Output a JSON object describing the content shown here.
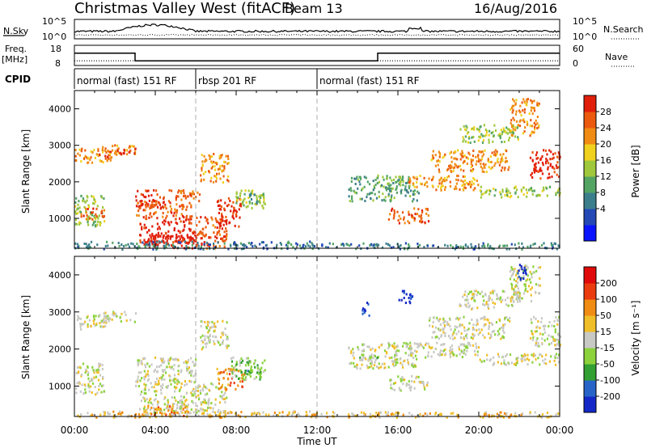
{
  "header": {
    "title": "Christmas Valley West (fitACF)",
    "beam": "Beam 13",
    "date": "16/Aug/2016"
  },
  "top_panels": {
    "nsky_label": "N.Sky",
    "nsky_ticks": [
      "10^5",
      "10^0"
    ],
    "nsearch_label": "N.Search",
    "nsearch_ticks": [
      "10^5",
      "10^0"
    ],
    "freq_label": "Freq.",
    "freq_unit": "[MHz]",
    "freq_ticks": [
      "18",
      "8"
    ],
    "nave_label": "Nave",
    "nave_ticks": [
      "60",
      "0"
    ],
    "cpid_label": "CPID",
    "cpid_segments": [
      {
        "label": "normal (fast) 151 RF",
        "start": 0,
        "end": 6
      },
      {
        "label": "rbsp 201 RF",
        "start": 6,
        "end": 12
      },
      {
        "label": "normal (fast) 151 RF",
        "start": 12,
        "end": 24
      }
    ],
    "freq_steps": [
      {
        "t0": 0,
        "t1": 3,
        "f": 15
      },
      {
        "t0": 3,
        "t1": 15,
        "f": 10
      },
      {
        "t0": 15,
        "t1": 24,
        "f": 15
      }
    ],
    "nave_level": 12
  },
  "x_axis": {
    "label": "Time UT",
    "ticks": [
      "00:00",
      "04:00",
      "08:00",
      "12:00",
      "16:00",
      "20:00",
      "00:00"
    ],
    "range": [
      0,
      24
    ]
  },
  "power_panel": {
    "ylabel": "Slant Range [km]",
    "yticks": [
      "4000",
      "3000",
      "2000",
      "1000"
    ],
    "colorbar_label": "Power [dB]",
    "colorbar_ticks": [
      "28",
      "24",
      "20",
      "16",
      "12",
      "8",
      "4"
    ],
    "colors": [
      "#0a14ff",
      "#2448b4",
      "#3c7f8c",
      "#54a464",
      "#a0c83c",
      "#f0d21e",
      "#f08c14",
      "#eb5a0f",
      "#e11e0a"
    ]
  },
  "velocity_panel": {
    "ylabel": "Slant Range [km]",
    "yticks": [
      "4000",
      "3000",
      "2000",
      "1000"
    ],
    "colorbar_label": "Velocity [m s⁻¹]",
    "colorbar_ticks": [
      "200",
      "100",
      "50",
      "15",
      "-15",
      "-50",
      "-100",
      "-200"
    ],
    "colors": [
      "#1428c8",
      "#2864c8",
      "#32a032",
      "#8cd23c",
      "#c8c8c4",
      "#f0be28",
      "#f08c14",
      "#eb3c0f",
      "#e10a0a"
    ]
  },
  "chart_data": [
    {
      "type": "heatmap",
      "name": "Power",
      "x_range_hours": [
        0,
        24
      ],
      "y_range_km": [
        180,
        4500
      ],
      "regions": [
        {
          "t0": 0.0,
          "t1": 1.8,
          "r0": 2550,
          "r1": 2950,
          "level": 6
        },
        {
          "t0": 1.2,
          "t1": 1.8,
          "r0": 2600,
          "r1": 2850,
          "level": 7
        },
        {
          "t0": 0.0,
          "t1": 1.5,
          "r0": 800,
          "r1": 1650,
          "level": 4
        },
        {
          "t0": 0.3,
          "t1": 1.5,
          "r0": 1000,
          "r1": 1300,
          "level": 7
        },
        {
          "t0": 1.3,
          "t1": 3.0,
          "r0": 2750,
          "r1": 3050,
          "level": 6
        },
        {
          "t0": 2.0,
          "t1": 3.0,
          "r0": 2780,
          "r1": 2950,
          "level": 8
        },
        {
          "t0": 3.0,
          "t1": 4.5,
          "r0": 1300,
          "r1": 1800,
          "level": 8
        },
        {
          "t0": 3.0,
          "t1": 5.8,
          "r0": 1000,
          "r1": 1500,
          "level": 7
        },
        {
          "t0": 3.2,
          "t1": 6.0,
          "r0": 300,
          "r1": 1000,
          "level": 8
        },
        {
          "t0": 3.6,
          "t1": 6.0,
          "r0": 200,
          "r1": 600,
          "level": 9
        },
        {
          "t0": 4.5,
          "t1": 6.2,
          "r0": 1500,
          "r1": 1800,
          "level": 7
        },
        {
          "t0": 6.0,
          "t1": 7.5,
          "r0": 200,
          "r1": 1100,
          "level": 7
        },
        {
          "t0": 6.2,
          "t1": 7.6,
          "r0": 2000,
          "r1": 2800,
          "level": 6
        },
        {
          "t0": 7.0,
          "t1": 8.2,
          "r0": 800,
          "r1": 1600,
          "level": 8
        },
        {
          "t0": 7.8,
          "t1": 9.4,
          "r0": 1300,
          "r1": 1800,
          "level": 4
        },
        {
          "t0": 8.6,
          "t1": 9.4,
          "r0": 1400,
          "r1": 1700,
          "level": 3
        },
        {
          "t0": 0.0,
          "t1": 12.0,
          "r0": 180,
          "r1": 400,
          "level": 2
        },
        {
          "t0": 12.0,
          "t1": 24.0,
          "r0": 180,
          "r1": 350,
          "level": 2
        },
        {
          "t0": 13.5,
          "t1": 17.0,
          "r0": 1500,
          "r1": 2200,
          "level": 3
        },
        {
          "t0": 15.5,
          "t1": 17.5,
          "r0": 900,
          "r1": 1300,
          "level": 7
        },
        {
          "t0": 16.5,
          "t1": 20.0,
          "r0": 1800,
          "r1": 2200,
          "level": 6
        },
        {
          "t0": 17.5,
          "t1": 21.5,
          "r0": 2300,
          "r1": 2900,
          "level": 6
        },
        {
          "t0": 19.0,
          "t1": 22.0,
          "r0": 3100,
          "r1": 3600,
          "level": 4
        },
        {
          "t0": 21.5,
          "t1": 23.0,
          "r0": 3300,
          "r1": 4300,
          "level": 6
        },
        {
          "t0": 22.5,
          "t1": 24.0,
          "r0": 2100,
          "r1": 2900,
          "level": 8
        },
        {
          "t0": 20.0,
          "t1": 24.0,
          "r0": 1600,
          "r1": 1900,
          "level": 4
        }
      ]
    },
    {
      "type": "heatmap",
      "name": "Velocity",
      "x_range_hours": [
        0,
        24
      ],
      "y_range_km": [
        180,
        4500
      ],
      "regions": [
        {
          "t0": 0.0,
          "t1": 1.8,
          "r0": 2550,
          "r1": 2950,
          "level": 4
        },
        {
          "t0": 0.0,
          "t1": 1.5,
          "r0": 800,
          "r1": 1650,
          "level": 4
        },
        {
          "t0": 1.3,
          "t1": 3.0,
          "r0": 2750,
          "r1": 3050,
          "level": 4
        },
        {
          "t0": 3.0,
          "t1": 6.0,
          "r0": 1000,
          "r1": 1800,
          "level": 4
        },
        {
          "t0": 3.2,
          "t1": 6.0,
          "r0": 300,
          "r1": 1000,
          "level": 4
        },
        {
          "t0": 3.4,
          "t1": 5.6,
          "r0": 200,
          "r1": 500,
          "level": 6
        },
        {
          "t0": 6.0,
          "t1": 7.5,
          "r0": 200,
          "r1": 1100,
          "level": 4
        },
        {
          "t0": 6.2,
          "t1": 7.6,
          "r0": 2000,
          "r1": 2800,
          "level": 4
        },
        {
          "t0": 7.0,
          "t1": 8.4,
          "r0": 900,
          "r1": 1500,
          "level": 6
        },
        {
          "t0": 7.6,
          "t1": 9.4,
          "r0": 1200,
          "r1": 1800,
          "level": 3
        },
        {
          "t0": 8.4,
          "t1": 9.2,
          "r0": 1400,
          "r1": 1700,
          "level": 2
        },
        {
          "t0": 0.0,
          "t1": 12.0,
          "r0": 180,
          "r1": 350,
          "level": 5
        },
        {
          "t0": 12.0,
          "t1": 24.0,
          "r0": 180,
          "r1": 330,
          "level": 5
        },
        {
          "t0": 13.5,
          "t1": 17.0,
          "r0": 1500,
          "r1": 2200,
          "level": 4
        },
        {
          "t0": 14.0,
          "t1": 15.0,
          "r0": 1750,
          "r1": 1900,
          "level": 3
        },
        {
          "t0": 14.2,
          "t1": 14.6,
          "r0": 2900,
          "r1": 3300,
          "level": 0
        },
        {
          "t0": 16.0,
          "t1": 16.7,
          "r0": 3200,
          "r1": 3600,
          "level": 0
        },
        {
          "t0": 15.5,
          "t1": 17.5,
          "r0": 900,
          "r1": 1300,
          "level": 4
        },
        {
          "t0": 16.5,
          "t1": 20.0,
          "r0": 1800,
          "r1": 2200,
          "level": 4
        },
        {
          "t0": 17.5,
          "t1": 21.5,
          "r0": 2300,
          "r1": 2900,
          "level": 4
        },
        {
          "t0": 19.0,
          "t1": 22.0,
          "r0": 3100,
          "r1": 3600,
          "level": 4
        },
        {
          "t0": 21.5,
          "t1": 23.0,
          "r0": 3300,
          "r1": 4300,
          "level": 4
        },
        {
          "t0": 22.5,
          "t1": 24.0,
          "r0": 2100,
          "r1": 2900,
          "level": 4
        },
        {
          "t0": 20.0,
          "t1": 24.0,
          "r0": 1600,
          "r1": 1900,
          "level": 4
        },
        {
          "t0": 21.8,
          "t1": 22.4,
          "r0": 3900,
          "r1": 4300,
          "level": 0
        }
      ]
    }
  ]
}
